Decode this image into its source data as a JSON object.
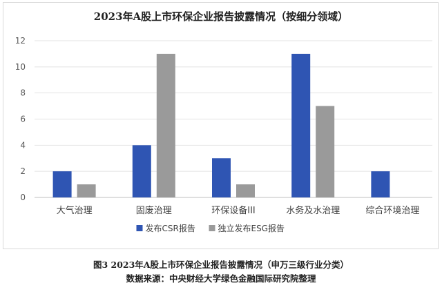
{
  "chart_data": {
    "type": "bar",
    "title": "2023年A股上市环保企业报告披露情况（按细分领域）",
    "categories": [
      "大气治理",
      "固废治理",
      "环保设备III",
      "水务及水治理",
      "综合环境治理"
    ],
    "series": [
      {
        "name": "发布CSR报告",
        "values": [
          2,
          4,
          3,
          11,
          2
        ],
        "color": "#2f55b3"
      },
      {
        "name": "独立发布ESG报告",
        "values": [
          1,
          11,
          1,
          7,
          0
        ],
        "color": "#9a9a9a"
      }
    ],
    "ylim": [
      0,
      12
    ],
    "yticks": [
      0,
      2,
      4,
      6,
      8,
      10,
      12
    ],
    "grid": true,
    "legend_position": "bottom"
  },
  "caption": {
    "figure_line": "图3    2023年A股上市环保企业报告披露情况（申万三级行业分类）",
    "source_line": "数据来源：中央财经大学绿色金融国际研究院整理"
  }
}
